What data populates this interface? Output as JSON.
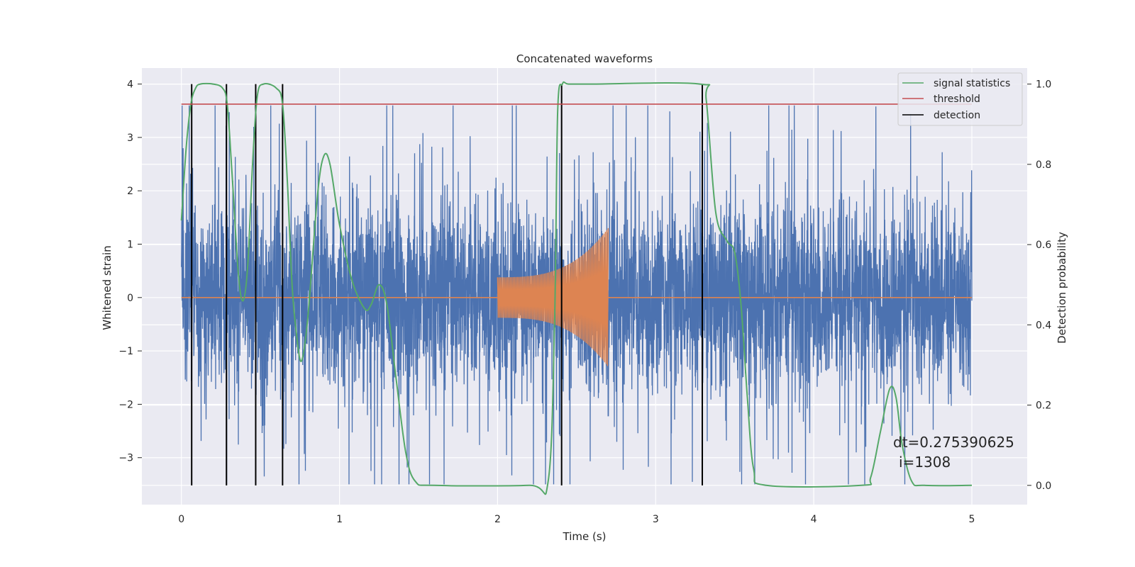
{
  "chart_data": {
    "type": "line",
    "title": "Concatenated waveforms",
    "xlabel": "Time (s)",
    "ylabel": "Whitened strain",
    "ylabel_right": "Detection probability",
    "xlim": [
      -0.25,
      5.35
    ],
    "ylim": [
      -3.88,
      4.3
    ],
    "ylim_right": [
      -0.048,
      1.04
    ],
    "xticks": [
      0,
      1,
      2,
      3,
      4,
      5
    ],
    "yticks": [
      -3,
      -2,
      -1,
      0,
      1,
      2,
      3,
      4
    ],
    "yticks_right": [
      0.0,
      0.2,
      0.4,
      0.6,
      0.8,
      1.0
    ],
    "grid": true,
    "legend_position": "top-right",
    "colors": {
      "strain": "#4c72b0",
      "waveform": "#dd8452",
      "signal_statistics": "#55a868",
      "threshold": "#c44e52",
      "detection": "#000000",
      "background": "#eaeaf2"
    },
    "series": [
      {
        "name": "signal statistics",
        "axis": "right",
        "x": [
          0,
          0.03,
          0.06,
          0.09,
          0.12,
          0.2,
          0.26,
          0.29,
          0.32,
          0.36,
          0.39,
          0.42,
          0.45,
          0.48,
          0.52,
          0.6,
          0.64,
          0.67,
          0.7,
          0.73,
          0.76,
          0.8,
          0.86,
          0.9,
          0.94,
          1.0,
          1.08,
          1.16,
          1.2,
          1.25,
          1.3,
          1.36,
          1.42,
          1.48,
          1.6,
          2.2,
          2.32,
          2.36,
          2.38,
          2.41,
          2.45,
          2.6,
          3.28,
          3.32,
          3.38,
          3.45,
          3.5,
          3.54,
          3.58,
          3.62,
          3.7,
          4.3,
          4.36,
          4.42,
          4.48,
          4.52,
          4.56,
          4.62,
          4.7,
          5.0
        ],
        "y": [
          0.66,
          0.84,
          0.95,
          0.99,
          1.0,
          1.0,
          0.99,
          0.95,
          0.78,
          0.53,
          0.46,
          0.55,
          0.8,
          0.97,
          1.0,
          0.99,
          0.95,
          0.76,
          0.5,
          0.37,
          0.31,
          0.42,
          0.72,
          0.82,
          0.8,
          0.65,
          0.51,
          0.44,
          0.45,
          0.5,
          0.45,
          0.26,
          0.08,
          0.01,
          0.0,
          0.0,
          0.01,
          0.4,
          0.93,
          1.0,
          1.0,
          1.0,
          1.0,
          0.96,
          0.68,
          0.61,
          0.58,
          0.45,
          0.22,
          0.04,
          0.0,
          0.0,
          0.02,
          0.13,
          0.24,
          0.22,
          0.1,
          0.01,
          0.0,
          0.0
        ]
      },
      {
        "name": "threshold",
        "axis": "right",
        "x": [
          0,
          5.0
        ],
        "y": [
          0.95,
          0.95
        ]
      },
      {
        "name": "detection",
        "axis": "right",
        "x": [
          0.065,
          0.285,
          0.47,
          0.64,
          2.405,
          3.295
        ],
        "y_range": [
          0.0,
          1.0
        ]
      },
      {
        "name": "",
        "axis": "left",
        "kind": "noise",
        "x_range": [
          0,
          5.0
        ],
        "amplitude_sd": 0.85,
        "peak_min": -3.5,
        "peak_max": 3.6
      },
      {
        "name": "",
        "axis": "left",
        "kind": "chirp",
        "x_range": [
          2.0,
          2.7
        ],
        "amplitude_start": 0.38,
        "amplitude_end": 1.3
      }
    ]
  },
  "annotation": {
    "dt_text": "dt=0.275390625",
    "i_text": "i=1308"
  }
}
